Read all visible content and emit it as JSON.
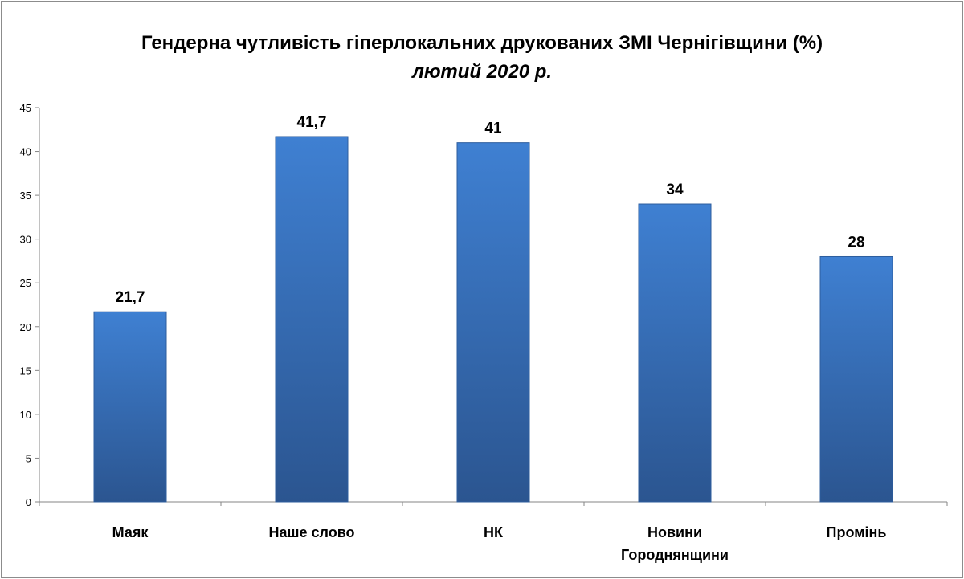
{
  "chart_data": {
    "type": "bar",
    "title": "Гендерна чутливість гіперлокальних друкованих ЗМІ Чернігівщини (%)",
    "subtitle": "лютий 2020 р.",
    "categories": [
      [
        "Маяк"
      ],
      [
        "Наше слово"
      ],
      [
        "НК"
      ],
      [
        "Новини",
        "Городнянщини"
      ],
      [
        "Промінь"
      ]
    ],
    "values": [
      21.7,
      41.7,
      41,
      34,
      28
    ],
    "data_labels": [
      "21,7",
      "41,7",
      "41",
      "34",
      "28"
    ],
    "ylim": [
      0,
      45
    ],
    "yticks": [
      0,
      5,
      10,
      15,
      20,
      25,
      30,
      35,
      40,
      45
    ],
    "grid": false,
    "legend": "none",
    "bar_color": "#3a78c6"
  }
}
